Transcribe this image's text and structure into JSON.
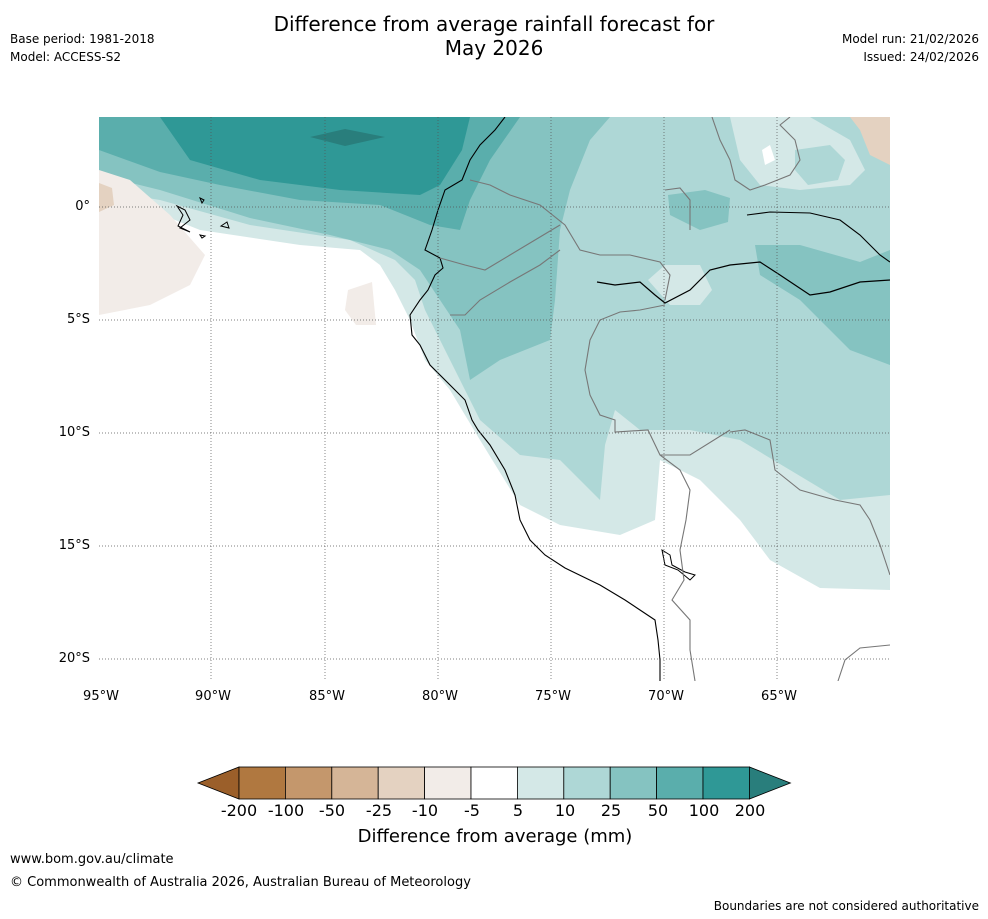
{
  "title": {
    "line1": "Difference from average rainfall forecast for",
    "line2": "May 2026"
  },
  "meta": {
    "base_period": "Base period: 1981-2018",
    "model": "Model: ACCESS-S2",
    "model_run": "Model run: 21/02/2026",
    "issued": "Issued: 24/02/2026"
  },
  "axes": {
    "longitudes": [
      "95°W",
      "90°W",
      "85°W",
      "80°W",
      "75°W",
      "70°W",
      "65°W"
    ],
    "latitudes": [
      "0°",
      "5°S",
      "10°S",
      "15°S",
      "20°S"
    ]
  },
  "colorbar": {
    "label": "Difference from average (mm)",
    "ticks": [
      "-200",
      "-100",
      "-50",
      "-25",
      "-10",
      "-5",
      "5",
      "10",
      "25",
      "50",
      "100",
      "200"
    ],
    "colors": [
      "#9b5f2a",
      "#b07840",
      "#c4976c",
      "#d5b597",
      "#e4d2c1",
      "#f2ece8",
      "#ffffff",
      "#d4e8e7",
      "#aed7d6",
      "#85c3c1",
      "#5aaeac",
      "#2f9896",
      "#297e7c"
    ]
  },
  "footer": {
    "website": "www.bom.gov.au/climate",
    "copyright": "© Commonwealth of Australia 2026, Australian Bureau of Meteorology",
    "disclaimer": "Boundaries are not considered authoritative"
  }
}
